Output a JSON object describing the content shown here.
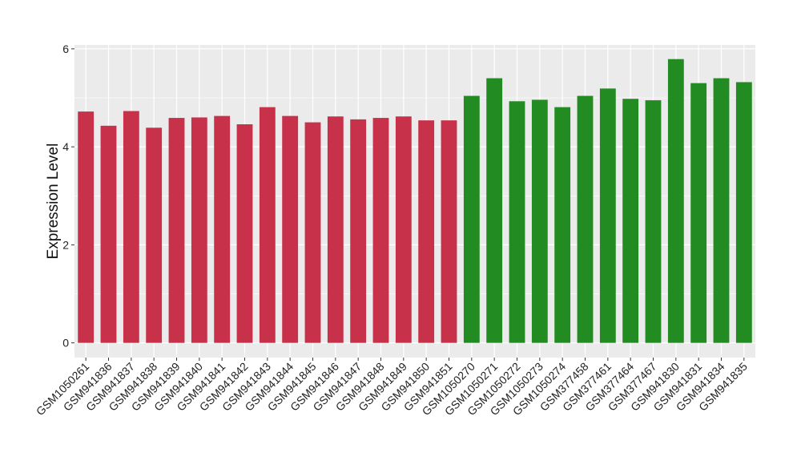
{
  "chart_data": {
    "type": "bar",
    "title": "",
    "xlabel": "",
    "ylabel": "Expression Level",
    "ylim": [
      -0.3,
      6.08
    ],
    "yticks": [
      0,
      2,
      4,
      6
    ],
    "grid": true,
    "legend": "none",
    "colors": {
      "panel_background": "#EBEBEB",
      "grid_major": "#FFFFFF",
      "group_1": "#C8314A",
      "group_2": "#228B22"
    },
    "categories": [
      "GSM1050261",
      "GSM941836",
      "GSM941837",
      "GSM941838",
      "GSM941839",
      "GSM941840",
      "GSM941841",
      "GSM941842",
      "GSM941843",
      "GSM941844",
      "GSM941845",
      "GSM941846",
      "GSM941847",
      "GSM941848",
      "GSM941849",
      "GSM941850",
      "GSM941851",
      "GSM1050270",
      "GSM1050271",
      "GSM1050272",
      "GSM1050273",
      "GSM1050274",
      "GSM377458",
      "GSM377461",
      "GSM377464",
      "GSM377467",
      "GSM941830",
      "GSM941831",
      "GSM941834",
      "GSM941835"
    ],
    "values": [
      4.72,
      4.43,
      4.73,
      4.39,
      4.59,
      4.6,
      4.63,
      4.46,
      4.81,
      4.63,
      4.5,
      4.62,
      4.56,
      4.59,
      4.62,
      4.54,
      4.54,
      5.04,
      5.4,
      4.93,
      4.96,
      4.81,
      5.04,
      5.19,
      4.98,
      4.95,
      5.79,
      5.3,
      5.4,
      5.32
    ],
    "groups": [
      0,
      0,
      0,
      0,
      0,
      0,
      0,
      0,
      0,
      0,
      0,
      0,
      0,
      0,
      0,
      0,
      0,
      1,
      1,
      1,
      1,
      1,
      1,
      1,
      1,
      1,
      1,
      1,
      1,
      1
    ]
  }
}
